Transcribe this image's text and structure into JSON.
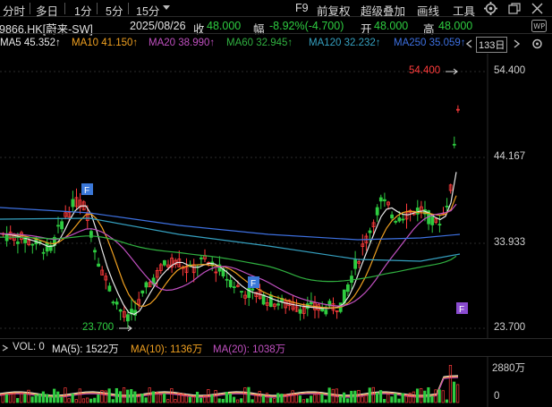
{
  "toolbar": {
    "tabs": [
      "分时",
      "多日",
      "1分",
      "5分",
      "15分"
    ],
    "right_buttons": [
      "F9",
      "前复权",
      "超级叠加",
      "画线",
      "工具"
    ]
  },
  "header": {
    "symbol": "9866.HK[蔚来-SW]",
    "date": "2025/08/26",
    "close_label": "收",
    "close_value": "48.000",
    "change_label": "幅",
    "change_value": "-8.92%(-4.700)",
    "open_label": "开",
    "open_value": "48.000",
    "high_label": "高",
    "high_value": "48.000"
  },
  "ma_line": {
    "ma5": "MA5 45.352↑",
    "ma10": "MA10 41.150↑",
    "ma20": "MA20 38.990↑",
    "ma60": "MA60 32.945↑",
    "ma120": "MA120 32.232↑",
    "ma250": "MA250 35.059↑",
    "period": "133日"
  },
  "price_axis": [
    "54.400",
    "44.167",
    "33.933",
    "23.700"
  ],
  "annotations": {
    "max_label": "54.400",
    "min_label": "23.700",
    "marker": "F"
  },
  "vol_line": {
    "vol": "VOL: 0",
    "ma5": "MA(5): 1522万",
    "ma10": "MA(10): 1136万",
    "ma20": "MA(20): 1038万"
  },
  "vol_axis": [
    "2880万",
    "0"
  ],
  "colors": {
    "up": "#ff3b3b",
    "down": "#2ecc40",
    "ma5": "#e8e8e8",
    "ma10": "#f0a020",
    "ma20": "#c050c0",
    "ma60": "#30b040",
    "ma120": "#35a0c0",
    "ma250": "#3d70e0",
    "marker_blue": "#3b78d8",
    "marker_purple": "#8a4bd0"
  },
  "icons": [
    "gear-icon",
    "restore-icon",
    "close-icon",
    "wp-icon",
    "chevron-left-icon",
    "chevron-right-icon",
    "settings-icon"
  ]
}
